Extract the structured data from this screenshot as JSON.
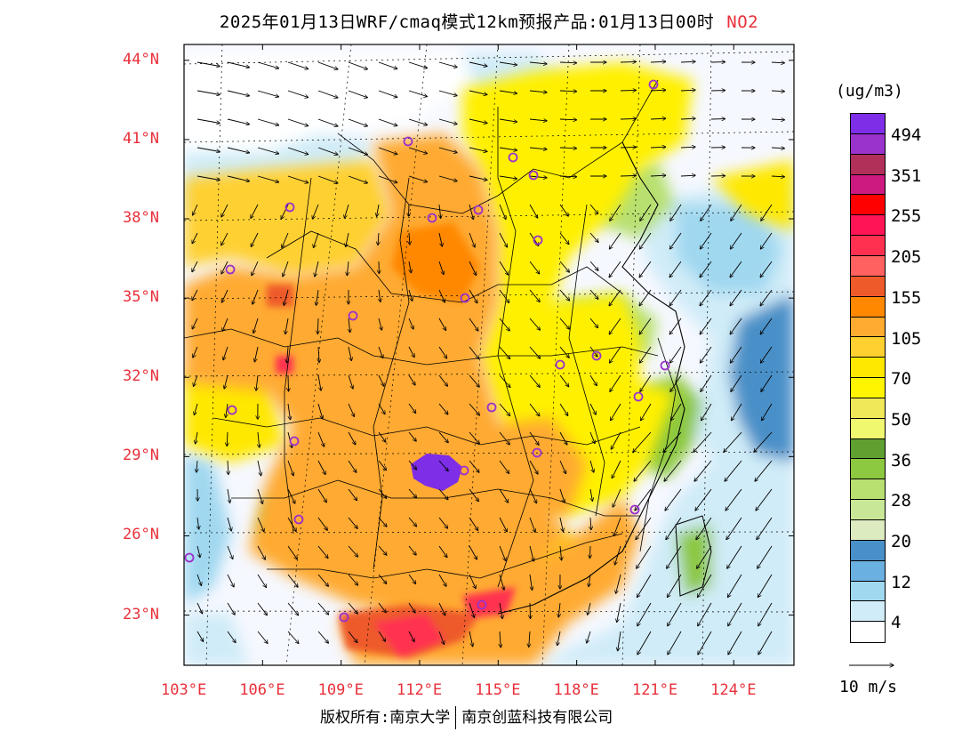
{
  "header": {
    "title": "2025年01月13日WRF/cmaq模式12km预报产品:01月13日00时",
    "pollutant": "NO2"
  },
  "map": {
    "lat_labels": [
      "44°N",
      "41°N",
      "38°N",
      "35°N",
      "32°N",
      "29°N",
      "26°N",
      "23°N"
    ],
    "lon_labels": [
      "103°E",
      "106°E",
      "109°E",
      "112°E",
      "115°E",
      "118°E",
      "121°E",
      "124°E"
    ],
    "lat_values": [
      44,
      41,
      38,
      35,
      32,
      29,
      26,
      23
    ],
    "lon_values": [
      103,
      106,
      109,
      112,
      115,
      118,
      121,
      124
    ],
    "extent": {
      "lon_min": 103,
      "lon_max": 126.3,
      "lat_min": 21.1,
      "lat_max": 44.6
    }
  },
  "legend": {
    "unit": "(ug/m3)",
    "colors": [
      "#7d2ee6",
      "#9a32cc",
      "#b0305a",
      "#cc1a80",
      "#ff0000",
      "#ff1455",
      "#ff3050",
      "#ff6060",
      "#ee5a2a",
      "#ff8800",
      "#ffaa30",
      "#ffd030",
      "#ffe800",
      "#fff500",
      "#f0e858",
      "#f0f870",
      "#60a030",
      "#8cc840",
      "#b8e070",
      "#c8e898",
      "#dcecc0",
      "#4a90c8",
      "#6ab0e0",
      "#a0d8f0",
      "#d0ecf8",
      "#ffffff"
    ],
    "labels": [
      "494",
      "351",
      "255",
      "205",
      "155",
      "105",
      "70",
      "50",
      "36",
      "28",
      "20",
      "12",
      "4"
    ],
    "wind_ref": "10 m/s"
  },
  "footer": {
    "copyright_a": "版权所有:南京大学",
    "copyright_b": "南京创蓝科技有限公司"
  }
}
